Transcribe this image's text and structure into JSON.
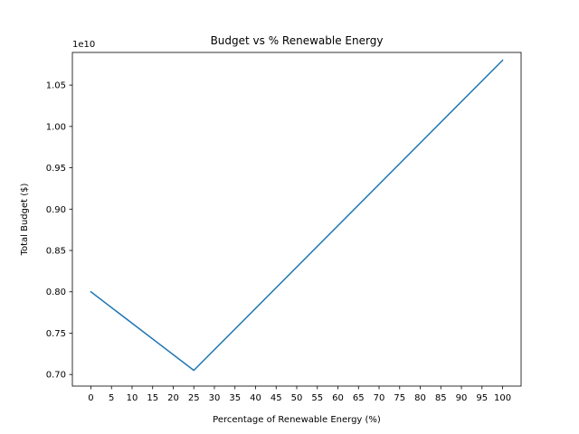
{
  "chart_data": {
    "type": "line",
    "title": "Budget vs % Renewable Energy",
    "xlabel": "Percentage of Renewable Energy (%)",
    "ylabel": "Total Budget ($)",
    "y_offset_label": "1e10",
    "xlim": [
      -4.5,
      104.5
    ],
    "ylim": [
      0.686,
      1.0895
    ],
    "x_ticks": [
      0,
      5,
      10,
      15,
      20,
      25,
      30,
      35,
      40,
      45,
      50,
      55,
      60,
      65,
      70,
      75,
      80,
      85,
      90,
      95,
      100
    ],
    "x_tick_labels": [
      "0",
      "5",
      "10",
      "15",
      "20",
      "25",
      "30",
      "35",
      "40",
      "45",
      "50",
      "55",
      "60",
      "65",
      "70",
      "75",
      "80",
      "85",
      "90",
      "95",
      "100"
    ],
    "y_ticks": [
      0.7,
      0.75,
      0.8,
      0.85,
      0.9,
      0.95,
      1.0,
      1.05
    ],
    "y_tick_labels": [
      "0.70",
      "0.75",
      "0.80",
      "0.85",
      "0.90",
      "0.95",
      "1.00",
      "1.05"
    ],
    "grid": false,
    "series": [
      {
        "color": "#1f77b4",
        "x": [
          0,
          25,
          100
        ],
        "y": [
          0.8,
          0.705,
          1.08
        ]
      }
    ]
  }
}
